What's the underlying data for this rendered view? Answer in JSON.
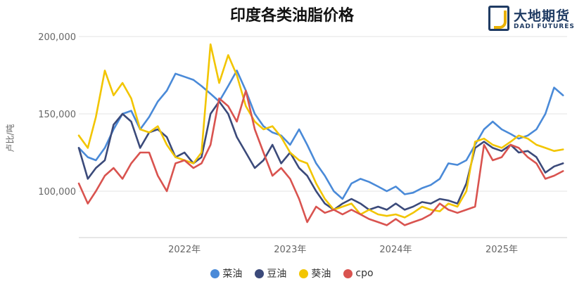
{
  "chart_data": {
    "type": "line",
    "title": "印度各类油脂价格",
    "ylabel": "卢比/吨",
    "ylim": [
      70000,
      200000
    ],
    "y_ticks": [
      100000,
      150000,
      200000
    ],
    "y_tick_labels": [
      "100,000",
      "150,000",
      "200,000"
    ],
    "x_range": [
      "2021-01-01",
      "2025-08-15"
    ],
    "x_tick_labels": [
      "2022年",
      "2023年",
      "2024年",
      "2025年"
    ],
    "x_tick_dates": [
      "2022-01-01",
      "2023-01-01",
      "2024-01-01",
      "2025-01-01"
    ],
    "grid": true,
    "legend_position": "bottom",
    "series": [
      {
        "name": "菜油",
        "color": "#4a8ad8",
        "points": [
          [
            "2021-01-01",
            128000
          ],
          [
            "2021-02-01",
            122000
          ],
          [
            "2021-03-01",
            120000
          ],
          [
            "2021-04-01",
            128000
          ],
          [
            "2021-05-01",
            140000
          ],
          [
            "2021-06-01",
            150000
          ],
          [
            "2021-07-01",
            152000
          ],
          [
            "2021-08-01",
            140000
          ],
          [
            "2021-09-01",
            148000
          ],
          [
            "2021-10-01",
            158000
          ],
          [
            "2021-11-01",
            165000
          ],
          [
            "2021-12-01",
            176000
          ],
          [
            "2022-01-01",
            174000
          ],
          [
            "2022-02-01",
            172000
          ],
          [
            "2022-03-01",
            168000
          ],
          [
            "2022-04-01",
            163000
          ],
          [
            "2022-05-01",
            158000
          ],
          [
            "2022-06-01",
            168000
          ],
          [
            "2022-07-01",
            178000
          ],
          [
            "2022-08-01",
            165000
          ],
          [
            "2022-09-01",
            150000
          ],
          [
            "2022-10-01",
            142000
          ],
          [
            "2022-11-01",
            138000
          ],
          [
            "2022-12-01",
            136000
          ],
          [
            "2023-01-01",
            130000
          ],
          [
            "2023-02-01",
            140000
          ],
          [
            "2023-03-01",
            130000
          ],
          [
            "2023-04-01",
            118000
          ],
          [
            "2023-05-01",
            110000
          ],
          [
            "2023-06-01",
            100000
          ],
          [
            "2023-07-01",
            95000
          ],
          [
            "2023-08-01",
            105000
          ],
          [
            "2023-09-01",
            108000
          ],
          [
            "2023-10-01",
            106000
          ],
          [
            "2023-11-01",
            103000
          ],
          [
            "2023-12-01",
            100000
          ],
          [
            "2024-01-01",
            103000
          ],
          [
            "2024-02-01",
            98000
          ],
          [
            "2024-03-01",
            99000
          ],
          [
            "2024-04-01",
            102000
          ],
          [
            "2024-05-01",
            104000
          ],
          [
            "2024-06-01",
            108000
          ],
          [
            "2024-07-01",
            118000
          ],
          [
            "2024-08-01",
            117000
          ],
          [
            "2024-09-01",
            120000
          ],
          [
            "2024-10-01",
            130000
          ],
          [
            "2024-11-01",
            140000
          ],
          [
            "2024-12-01",
            145000
          ],
          [
            "2025-01-01",
            140000
          ],
          [
            "2025-02-01",
            137000
          ],
          [
            "2025-03-01",
            134000
          ],
          [
            "2025-04-01",
            136000
          ],
          [
            "2025-05-01",
            140000
          ],
          [
            "2025-06-01",
            150000
          ],
          [
            "2025-07-01",
            167000
          ],
          [
            "2025-08-01",
            162000
          ]
        ]
      },
      {
        "name": "豆油",
        "color": "#3b4a7a",
        "points": [
          [
            "2021-01-01",
            128000
          ],
          [
            "2021-02-01",
            108000
          ],
          [
            "2021-03-01",
            115000
          ],
          [
            "2021-04-01",
            120000
          ],
          [
            "2021-05-01",
            143000
          ],
          [
            "2021-06-01",
            150000
          ],
          [
            "2021-07-01",
            145000
          ],
          [
            "2021-08-01",
            128000
          ],
          [
            "2021-09-01",
            138000
          ],
          [
            "2021-10-01",
            140000
          ],
          [
            "2021-11-01",
            135000
          ],
          [
            "2021-12-01",
            122000
          ],
          [
            "2022-01-01",
            125000
          ],
          [
            "2022-02-01",
            118000
          ],
          [
            "2022-03-01",
            122000
          ],
          [
            "2022-04-01",
            150000
          ],
          [
            "2022-05-01",
            158000
          ],
          [
            "2022-06-01",
            150000
          ],
          [
            "2022-07-01",
            135000
          ],
          [
            "2022-08-01",
            125000
          ],
          [
            "2022-09-01",
            115000
          ],
          [
            "2022-10-01",
            120000
          ],
          [
            "2022-11-01",
            130000
          ],
          [
            "2022-12-01",
            118000
          ],
          [
            "2023-01-01",
            125000
          ],
          [
            "2023-02-01",
            115000
          ],
          [
            "2023-03-01",
            110000
          ],
          [
            "2023-04-01",
            100000
          ],
          [
            "2023-05-01",
            92000
          ],
          [
            "2023-06-01",
            88000
          ],
          [
            "2023-07-01",
            92000
          ],
          [
            "2023-08-01",
            95000
          ],
          [
            "2023-09-01",
            92000
          ],
          [
            "2023-10-01",
            88000
          ],
          [
            "2023-11-01",
            90000
          ],
          [
            "2023-12-01",
            88000
          ],
          [
            "2024-01-01",
            92000
          ],
          [
            "2024-02-01",
            88000
          ],
          [
            "2024-03-01",
            90000
          ],
          [
            "2024-04-01",
            93000
          ],
          [
            "2024-05-01",
            92000
          ],
          [
            "2024-06-01",
            95000
          ],
          [
            "2024-07-01",
            94000
          ],
          [
            "2024-08-01",
            92000
          ],
          [
            "2024-09-01",
            105000
          ],
          [
            "2024-10-01",
            128000
          ],
          [
            "2024-11-01",
            132000
          ],
          [
            "2024-12-01",
            128000
          ],
          [
            "2025-01-01",
            126000
          ],
          [
            "2025-02-01",
            130000
          ],
          [
            "2025-03-01",
            125000
          ],
          [
            "2025-04-01",
            126000
          ],
          [
            "2025-05-01",
            122000
          ],
          [
            "2025-06-01",
            112000
          ],
          [
            "2025-07-01",
            116000
          ],
          [
            "2025-08-01",
            118000
          ]
        ]
      },
      {
        "name": "葵油",
        "color": "#f2c500",
        "points": [
          [
            "2021-01-01",
            136000
          ],
          [
            "2021-02-01",
            128000
          ],
          [
            "2021-03-01",
            148000
          ],
          [
            "2021-04-01",
            178000
          ],
          [
            "2021-05-01",
            162000
          ],
          [
            "2021-06-01",
            170000
          ],
          [
            "2021-07-01",
            160000
          ],
          [
            "2021-08-01",
            140000
          ],
          [
            "2021-09-01",
            138000
          ],
          [
            "2021-10-01",
            142000
          ],
          [
            "2021-11-01",
            130000
          ],
          [
            "2021-12-01",
            122000
          ],
          [
            "2022-01-01",
            120000
          ],
          [
            "2022-02-01",
            118000
          ],
          [
            "2022-03-01",
            125000
          ],
          [
            "2022-04-01",
            195000
          ],
          [
            "2022-05-01",
            170000
          ],
          [
            "2022-06-01",
            188000
          ],
          [
            "2022-07-01",
            175000
          ],
          [
            "2022-08-01",
            155000
          ],
          [
            "2022-09-01",
            145000
          ],
          [
            "2022-10-01",
            140000
          ],
          [
            "2022-11-01",
            142000
          ],
          [
            "2022-12-01",
            135000
          ],
          [
            "2023-01-01",
            125000
          ],
          [
            "2023-02-01",
            120000
          ],
          [
            "2023-03-01",
            118000
          ],
          [
            "2023-04-01",
            105000
          ],
          [
            "2023-05-01",
            95000
          ],
          [
            "2023-06-01",
            88000
          ],
          [
            "2023-07-01",
            90000
          ],
          [
            "2023-08-01",
            92000
          ],
          [
            "2023-09-01",
            85000
          ],
          [
            "2023-10-01",
            88000
          ],
          [
            "2023-11-01",
            85000
          ],
          [
            "2023-12-01",
            84000
          ],
          [
            "2024-01-01",
            85000
          ],
          [
            "2024-02-01",
            83000
          ],
          [
            "2024-03-01",
            86000
          ],
          [
            "2024-04-01",
            90000
          ],
          [
            "2024-05-01",
            88000
          ],
          [
            "2024-06-01",
            87000
          ],
          [
            "2024-07-01",
            92000
          ],
          [
            "2024-08-01",
            90000
          ],
          [
            "2024-09-01",
            100000
          ],
          [
            "2024-10-01",
            132000
          ],
          [
            "2024-11-01",
            134000
          ],
          [
            "2024-12-01",
            130000
          ],
          [
            "2025-01-01",
            128000
          ],
          [
            "2025-02-01",
            132000
          ],
          [
            "2025-03-01",
            136000
          ],
          [
            "2025-04-01",
            134000
          ],
          [
            "2025-05-01",
            130000
          ],
          [
            "2025-06-01",
            128000
          ],
          [
            "2025-07-01",
            126000
          ],
          [
            "2025-08-01",
            127000
          ]
        ]
      },
      {
        "name": "cpo",
        "color": "#d9534f",
        "points": [
          [
            "2021-01-01",
            105000
          ],
          [
            "2021-02-01",
            92000
          ],
          [
            "2021-03-01",
            100000
          ],
          [
            "2021-04-01",
            110000
          ],
          [
            "2021-05-01",
            115000
          ],
          [
            "2021-06-01",
            108000
          ],
          [
            "2021-07-01",
            118000
          ],
          [
            "2021-08-01",
            125000
          ],
          [
            "2021-09-01",
            125000
          ],
          [
            "2021-10-01",
            110000
          ],
          [
            "2021-11-01",
            100000
          ],
          [
            "2021-12-01",
            118000
          ],
          [
            "2022-01-01",
            120000
          ],
          [
            "2022-02-01",
            115000
          ],
          [
            "2022-03-01",
            118000
          ],
          [
            "2022-04-01",
            130000
          ],
          [
            "2022-05-01",
            160000
          ],
          [
            "2022-06-01",
            155000
          ],
          [
            "2022-07-01",
            145000
          ],
          [
            "2022-08-01",
            165000
          ],
          [
            "2022-09-01",
            140000
          ],
          [
            "2022-10-01",
            125000
          ],
          [
            "2022-11-01",
            110000
          ],
          [
            "2022-12-01",
            115000
          ],
          [
            "2023-01-01",
            108000
          ],
          [
            "2023-02-01",
            95000
          ],
          [
            "2023-03-01",
            80000
          ],
          [
            "2023-04-01",
            90000
          ],
          [
            "2023-05-01",
            86000
          ],
          [
            "2023-06-01",
            88000
          ],
          [
            "2023-07-01",
            85000
          ],
          [
            "2023-08-01",
            88000
          ],
          [
            "2023-09-01",
            85000
          ],
          [
            "2023-10-01",
            82000
          ],
          [
            "2023-11-01",
            80000
          ],
          [
            "2023-12-01",
            78000
          ],
          [
            "2024-01-01",
            82000
          ],
          [
            "2024-02-01",
            78000
          ],
          [
            "2024-03-01",
            80000
          ],
          [
            "2024-04-01",
            82000
          ],
          [
            "2024-05-01",
            85000
          ],
          [
            "2024-06-01",
            92000
          ],
          [
            "2024-07-01",
            88000
          ],
          [
            "2024-08-01",
            86000
          ],
          [
            "2024-09-01",
            88000
          ],
          [
            "2024-10-01",
            90000
          ],
          [
            "2024-11-01",
            130000
          ],
          [
            "2024-12-01",
            120000
          ],
          [
            "2025-01-01",
            122000
          ],
          [
            "2025-02-01",
            130000
          ],
          [
            "2025-03-01",
            128000
          ],
          [
            "2025-04-01",
            122000
          ],
          [
            "2025-05-01",
            118000
          ],
          [
            "2025-06-01",
            108000
          ],
          [
            "2025-07-01",
            110000
          ],
          [
            "2025-08-01",
            113000
          ]
        ]
      }
    ]
  },
  "logo": {
    "name": "大地期货",
    "subname": "DADI FUTURES"
  }
}
